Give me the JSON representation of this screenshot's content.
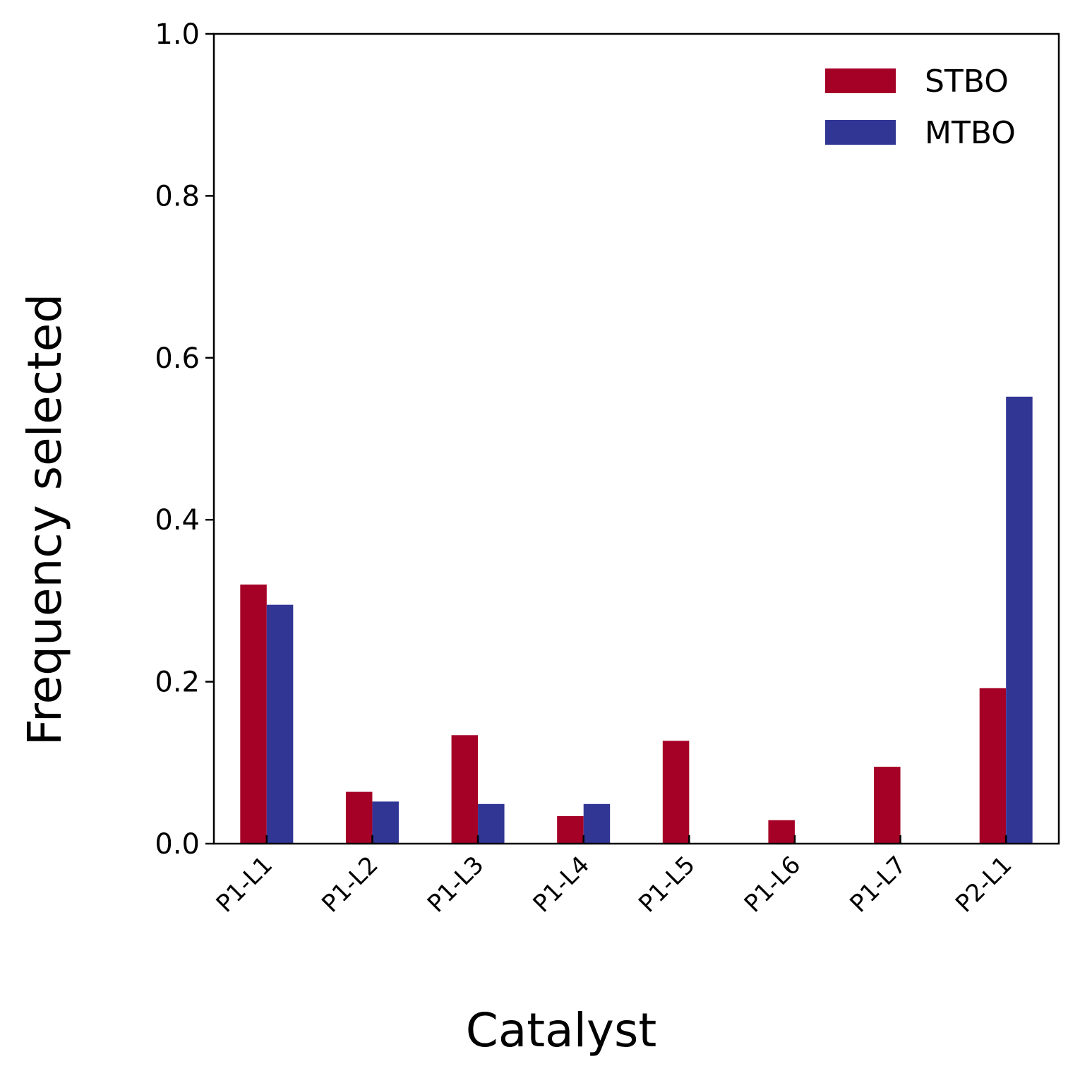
{
  "chart_data": {
    "type": "bar",
    "xlabel": "Catalyst",
    "ylabel": "Frequency selected",
    "categories": [
      "P1-L1",
      "P1-L2",
      "P1-L3",
      "P1-L4",
      "P1-L5",
      "P1-L6",
      "P1-L7",
      "P2-L1"
    ],
    "series": [
      {
        "name": "STBO",
        "color": "#a50026",
        "values": [
          0.32,
          0.064,
          0.134,
          0.034,
          0.127,
          0.029,
          0.095,
          0.192
        ]
      },
      {
        "name": "MTBO",
        "color": "#313695",
        "values": [
          0.295,
          0.052,
          0.049,
          0.049,
          0.0,
          0.0,
          0.0,
          0.552
        ]
      }
    ],
    "ylim": [
      0,
      1.0
    ],
    "yticks": [
      "0.0",
      "0.2",
      "0.4",
      "0.6",
      "0.8",
      "1.0"
    ],
    "grid": false,
    "legend_position": "top-right"
  }
}
